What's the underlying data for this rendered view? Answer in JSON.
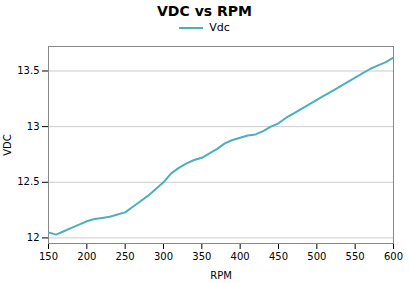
{
  "chart_data": {
    "type": "line",
    "title": "VDC vs RPM",
    "xlabel": "RPM",
    "ylabel": "VDC",
    "x": [
      150,
      160,
      170,
      180,
      190,
      200,
      210,
      220,
      230,
      240,
      250,
      260,
      270,
      280,
      290,
      300,
      310,
      320,
      330,
      340,
      350,
      360,
      370,
      380,
      390,
      400,
      410,
      420,
      430,
      440,
      450,
      460,
      470,
      480,
      490,
      500,
      510,
      520,
      530,
      540,
      550,
      560,
      570,
      580,
      590,
      600
    ],
    "series": [
      {
        "name": "Vdc",
        "color": "#4BAFC0",
        "values": [
          12.05,
          12.03,
          12.06,
          12.09,
          12.12,
          12.15,
          12.17,
          12.18,
          12.19,
          12.21,
          12.23,
          12.28,
          12.33,
          12.38,
          12.44,
          12.5,
          12.58,
          12.63,
          12.67,
          12.7,
          12.72,
          12.76,
          12.8,
          12.85,
          12.88,
          12.9,
          12.92,
          12.93,
          12.96,
          13.0,
          13.03,
          13.08,
          13.12,
          13.16,
          13.2,
          13.24,
          13.28,
          13.32,
          13.36,
          13.4,
          13.44,
          13.48,
          13.52,
          13.55,
          13.58,
          13.62
        ]
      }
    ],
    "xlim": [
      150,
      600
    ],
    "ylim": [
      11.95,
      13.72
    ],
    "xticks": [
      150,
      200,
      250,
      300,
      350,
      400,
      450,
      500,
      550,
      600
    ],
    "yticks": [
      12,
      12.5,
      13,
      13.5
    ],
    "grid": true,
    "legend": "top"
  }
}
